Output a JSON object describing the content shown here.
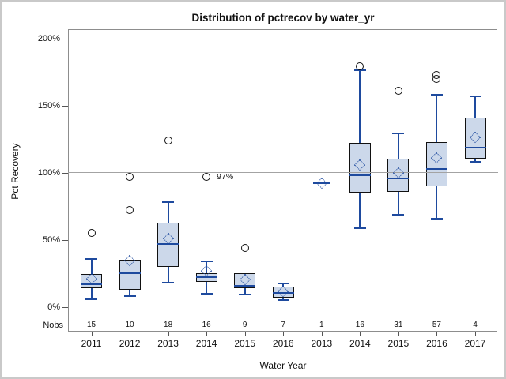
{
  "title": "Distribution of pctrecov by water_yr",
  "colors": {
    "box_fill": "#ccd8ea",
    "box_border": "#111111",
    "line_blue": "#1e4a9e",
    "refline_gray": "#a3a3a3",
    "frame_gray": "#8d8d8d"
  },
  "chart_data": {
    "type": "box",
    "title": "Distribution of pctrecov by water_yr",
    "xlabel": "Water Year",
    "ylabel": "Pct Recovery",
    "nobs_label": "Nobs",
    "ylim": [
      0,
      210
    ],
    "yticks": [
      0,
      50,
      100,
      150,
      200
    ],
    "ytick_labels": [
      "0%",
      "50%",
      "100%",
      "150%",
      "200%"
    ],
    "refline": 100,
    "grid": false,
    "legend": "none",
    "categories": [
      "2011",
      "2012",
      "2013",
      "2014",
      "2015",
      "2016",
      "2013",
      "2014",
      "2015",
      "2016",
      "2017"
    ],
    "nobs": [
      15,
      10,
      18,
      16,
      9,
      7,
      1,
      16,
      31,
      57,
      4
    ],
    "series": [
      {
        "label": "2011",
        "nobs": 15,
        "low": 6,
        "q1": 14,
        "median": 17,
        "q3": 24.5,
        "high": 36,
        "mean": 21,
        "outliers": [
          55
        ],
        "outlier_label": null
      },
      {
        "label": "2012",
        "nobs": 10,
        "low": 8,
        "q1": 13,
        "median": 25,
        "q3": 35.5,
        "high": null,
        "mean": 34.5,
        "outliers": [
          97,
          72.5
        ],
        "outlier_label": null
      },
      {
        "label": "2013",
        "nobs": 18,
        "low": 18,
        "q1": 30,
        "median": 47,
        "q3": 63,
        "high": 78,
        "mean": 51,
        "outliers": [
          124
        ],
        "outlier_label": null
      },
      {
        "label": "2014",
        "nobs": 16,
        "low": 10,
        "q1": 19,
        "median": 22.5,
        "q3": 25.5,
        "high": 34,
        "mean": 27,
        "outliers": [
          97
        ],
        "outlier_label": "97%"
      },
      {
        "label": "2015",
        "nobs": 9,
        "low": 9.5,
        "q1": 14,
        "median": 16,
        "q3": 25,
        "high": null,
        "mean": 20.5,
        "outliers": [
          44
        ],
        "outlier_label": null
      },
      {
        "label": "2016",
        "nobs": 7,
        "low": 5.5,
        "q1": 7,
        "median": 10.5,
        "q3": 15.5,
        "high": 17.5,
        "mean": 12,
        "outliers": [],
        "outlier_label": null
      },
      {
        "label": "2013",
        "nobs": 1,
        "low": null,
        "q1": null,
        "median": 92,
        "q3": null,
        "high": null,
        "mean": 92,
        "outliers": [],
        "outlier_label": null
      },
      {
        "label": "2014",
        "nobs": 16,
        "low": 58.5,
        "q1": 85,
        "median": 98,
        "q3": 122,
        "high": 176,
        "mean": 106,
        "outliers": [
          179
        ],
        "outlier_label": null
      },
      {
        "label": "2015",
        "nobs": 31,
        "low": 69,
        "q1": 86,
        "median": 96,
        "q3": 110.5,
        "high": 129,
        "mean": 100,
        "outliers": [
          161
        ],
        "outlier_label": null
      },
      {
        "label": "2016",
        "nobs": 57,
        "low": 66,
        "q1": 90,
        "median": 103,
        "q3": 122.5,
        "high": 158,
        "mean": 111,
        "outliers": [
          170,
          172.5
        ],
        "outlier_label": null
      },
      {
        "label": "2017",
        "nobs": 4,
        "low": 108,
        "q1": 110.5,
        "median": 118.5,
        "q3": 141,
        "high": 157,
        "mean": 126,
        "outliers": [],
        "outlier_label": null
      }
    ]
  }
}
